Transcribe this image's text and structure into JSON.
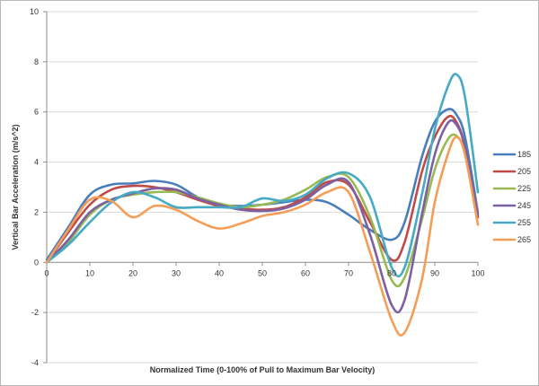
{
  "chart_data": {
    "type": "line",
    "xlabel": "Normalized Time (0-100% of Pull to Maximum Bar Velocity)",
    "ylabel": "Vertical Bar Acceleration (m/s^2)",
    "xlim": [
      0,
      100
    ],
    "ylim": [
      -4,
      10
    ],
    "x_ticks": [
      0,
      10,
      20,
      30,
      40,
      50,
      60,
      70,
      80,
      90,
      100
    ],
    "y_ticks": [
      -4,
      -2,
      0,
      2,
      4,
      6,
      8,
      10
    ],
    "grid": "horizontal",
    "legend_position": "right",
    "x": [
      0,
      5,
      10,
      15,
      20,
      25,
      30,
      35,
      40,
      45,
      50,
      55,
      60,
      65,
      70,
      75,
      80,
      83,
      87,
      90,
      93,
      95,
      97,
      100
    ],
    "series": [
      {
        "name": "185",
        "color": "#4a7ebb",
        "values": [
          0.1,
          1.4,
          2.7,
          3.1,
          3.15,
          3.25,
          3.1,
          2.6,
          2.3,
          2.25,
          2.3,
          2.4,
          2.5,
          2.4,
          1.9,
          1.3,
          0.9,
          1.6,
          4.2,
          5.6,
          6.1,
          5.9,
          5.0,
          2.0
        ]
      },
      {
        "name": "205",
        "color": "#be4b48",
        "values": [
          0.0,
          1.2,
          2.3,
          2.9,
          3.05,
          3.0,
          2.8,
          2.5,
          2.25,
          2.15,
          2.1,
          2.2,
          2.6,
          3.2,
          3.1,
          1.6,
          0.1,
          0.8,
          3.6,
          5.0,
          5.8,
          5.6,
          4.6,
          1.8
        ]
      },
      {
        "name": "225",
        "color": "#98b954",
        "values": [
          0.0,
          0.8,
          1.9,
          2.5,
          2.7,
          2.8,
          2.8,
          2.6,
          2.35,
          2.2,
          2.3,
          2.5,
          2.9,
          3.4,
          3.4,
          1.8,
          -0.7,
          -0.6,
          1.7,
          3.7,
          4.9,
          5.05,
          4.4,
          2.0
        ]
      },
      {
        "name": "245",
        "color": "#7d60a0",
        "values": [
          0.0,
          0.9,
          2.0,
          2.5,
          2.75,
          2.95,
          2.9,
          2.55,
          2.3,
          2.1,
          2.05,
          2.15,
          2.5,
          3.1,
          3.2,
          1.1,
          -1.7,
          -1.5,
          1.9,
          4.3,
          5.55,
          5.5,
          4.6,
          1.9
        ]
      },
      {
        "name": "255",
        "color": "#46aac5",
        "values": [
          0.0,
          0.7,
          1.6,
          2.4,
          2.8,
          2.6,
          2.2,
          2.2,
          2.2,
          2.2,
          2.55,
          2.45,
          2.7,
          3.35,
          3.55,
          2.6,
          -0.2,
          -0.2,
          2.7,
          5.3,
          7.0,
          7.5,
          6.6,
          2.8
        ]
      },
      {
        "name": "265",
        "color": "#f59d56",
        "values": [
          0.0,
          1.3,
          2.5,
          2.45,
          1.8,
          2.25,
          2.1,
          1.65,
          1.35,
          1.55,
          1.85,
          2.0,
          2.3,
          2.8,
          2.8,
          0.4,
          -2.3,
          -2.8,
          -0.7,
          2.4,
          4.3,
          5.0,
          4.3,
          1.5
        ]
      }
    ]
  }
}
